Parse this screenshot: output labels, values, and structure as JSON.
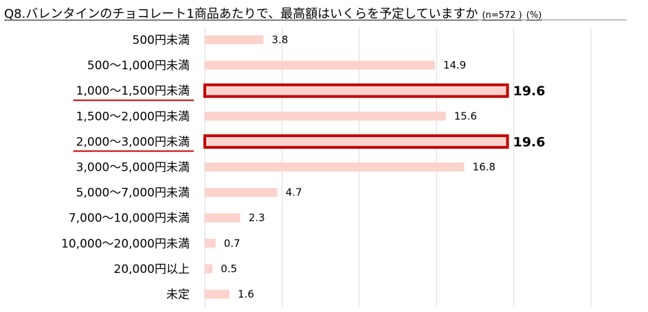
{
  "chart_data": {
    "type": "bar",
    "orientation": "horizontal",
    "title": "Q8.バレンタインのチョコレート1商品あたりで、最高額はいくらを予定していますか",
    "sample": "(n=572 )",
    "unit": "(%)",
    "categories": [
      "500円未満",
      "500〜1,000円未満",
      "1,000〜1,500円未満",
      "1,500〜2,000円未満",
      "2,000〜3,000円未満",
      "3,000〜5,000円未満",
      "5,000〜7,000円未満",
      "7,000〜10,000円未満",
      "10,000〜20,000円未満",
      "20,000円以上",
      "未定"
    ],
    "values": [
      3.8,
      14.9,
      19.6,
      15.6,
      19.6,
      16.8,
      4.7,
      2.3,
      0.7,
      0.5,
      1.6
    ],
    "value_labels": [
      "3.8",
      "14.9",
      "19.6",
      "15.6",
      "19.6",
      "16.8",
      "4.7",
      "2.3",
      "0.7",
      "0.5",
      "1.6"
    ],
    "highlighted": [
      false,
      false,
      true,
      false,
      true,
      false,
      false,
      false,
      false,
      false,
      false
    ],
    "xlim": [
      0,
      25
    ],
    "gridline_step": 5,
    "grid": true,
    "bar_color": "#fbd3cc",
    "highlight_border_color": "#c00000",
    "grid_color": "#d9d9d9",
    "title_line_color": "#7f7f7f"
  }
}
